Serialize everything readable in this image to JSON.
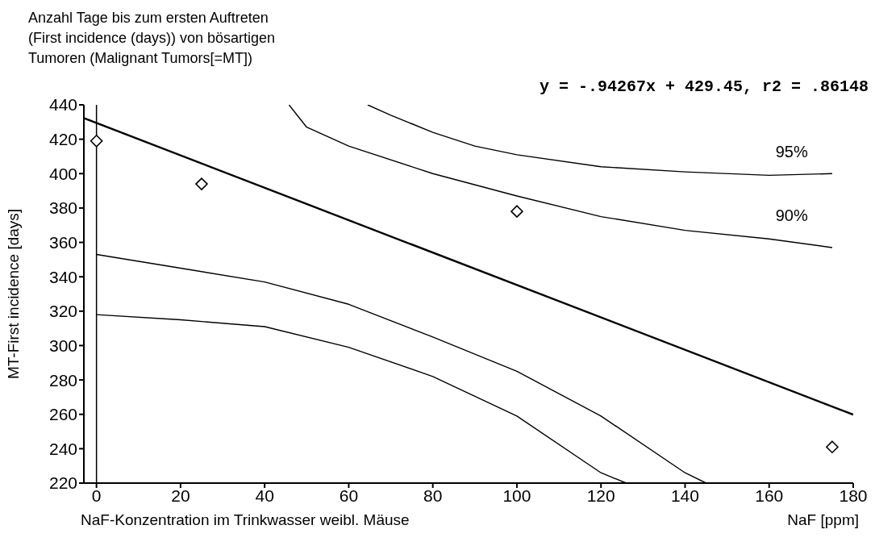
{
  "chart_data": {
    "type": "line",
    "title": "Anzahl Tage bis zum ersten Auftreten\n(First incidence (days)) von bösartigen\nTumoren (Malignant Tumors[=MT])",
    "xlabel": "NaF-Konzentration im Trinkwasser weibl. Mäuse",
    "ylabel": "MT-First incidence [days]",
    "annotations": [
      "y = -.94267x + 429.45, r2 = .86148",
      "NaF [ppm]"
    ],
    "xlim": [
      -3,
      180
    ],
    "xticks": [
      0,
      20,
      40,
      60,
      80,
      100,
      120,
      140,
      160,
      180
    ],
    "ylim": [
      220,
      440
    ],
    "yticks": [
      220,
      240,
      260,
      280,
      300,
      320,
      340,
      360,
      380,
      400,
      420,
      440
    ],
    "grid": false,
    "line_style": "solid",
    "ref_lines": [
      {
        "axis": "x",
        "value": 0,
        "color": "#000000"
      }
    ],
    "series": [
      {
        "type": "scatter",
        "color": "#000000",
        "marker": "diamond",
        "x": [
          0,
          25,
          100,
          175
        ],
        "values": [
          419,
          394,
          378,
          241
        ]
      },
      {
        "type": "line",
        "color": "#000000",
        "x": [
          -3,
          180
        ],
        "values": [
          432.3,
          259.8
        ]
      },
      {
        "type": "line",
        "name": "95%",
        "color": "#000000",
        "x": [
          64.5,
          70,
          80,
          90,
          100,
          120,
          140,
          160,
          175
        ],
        "values": [
          440,
          434,
          424,
          416,
          411,
          404,
          401,
          399,
          400
        ]
      },
      {
        "type": "line",
        "name": "90%",
        "color": "#000000",
        "x": [
          45.8,
          50,
          60,
          80,
          100,
          120,
          140,
          160,
          175
        ],
        "values": [
          440,
          427,
          416,
          400,
          387,
          375,
          367,
          362,
          357
        ]
      },
      {
        "type": "line",
        "color": "#000000",
        "x": [
          0,
          20,
          40,
          60,
          80,
          100,
          120,
          140,
          145
        ],
        "values": [
          353,
          345,
          337,
          324,
          305,
          285,
          259,
          226,
          220
        ]
      },
      {
        "type": "line",
        "color": "#000000",
        "x": [
          0,
          20,
          40,
          60,
          80,
          100,
          120,
          126
        ],
        "values": [
          318,
          315,
          311,
          299,
          282,
          259,
          226,
          220
        ]
      }
    ]
  }
}
